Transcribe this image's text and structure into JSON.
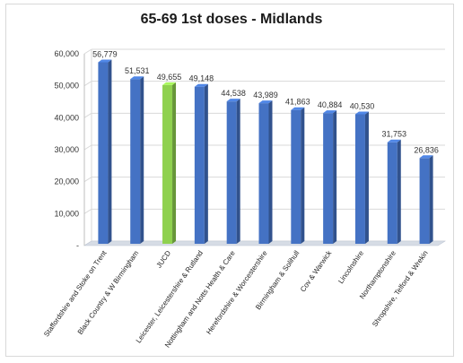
{
  "chart_data": {
    "type": "bar",
    "title": "65-69 1st doses - Midlands",
    "categories": [
      "Staffordshire and Stoke on Trent",
      "Black Country & W Birmingham",
      "JUCD",
      "Leicester, Leicestershire & Rutland",
      "Nottingham and Notts Health & Care",
      "Herefordshire & Worcestershire",
      "Birmingham & Solihull",
      "Cov & Warwick",
      "Lincolnshire",
      "Northamptonshire",
      "Shropshire, Telford & Wrekin"
    ],
    "values": [
      56779,
      51531,
      49655,
      49148,
      44538,
      43989,
      41863,
      40884,
      40530,
      31753,
      26836
    ],
    "data_labels": [
      "56,779",
      "51,531",
      "49,655",
      "49,148",
      "44,538",
      "43,989",
      "41,863",
      "40,884",
      "40,530",
      "31,753",
      "26,836"
    ],
    "highlight_category": "JUCD",
    "ylim": [
      0,
      60000
    ],
    "yticks": [
      0,
      10000,
      20000,
      30000,
      40000,
      50000,
      60000
    ],
    "ytick_labels": [
      "-",
      "10,000",
      "20,000",
      "30,000",
      "40,000",
      "50,000",
      "60,000"
    ],
    "xlabel": "",
    "ylabel": "",
    "grid": true,
    "legend": "none",
    "colors": {
      "bar": "#4472c4",
      "bar_highlight": "#8fd14f",
      "grid": "#d9d9d9",
      "floor": "#d6dce5"
    }
  }
}
